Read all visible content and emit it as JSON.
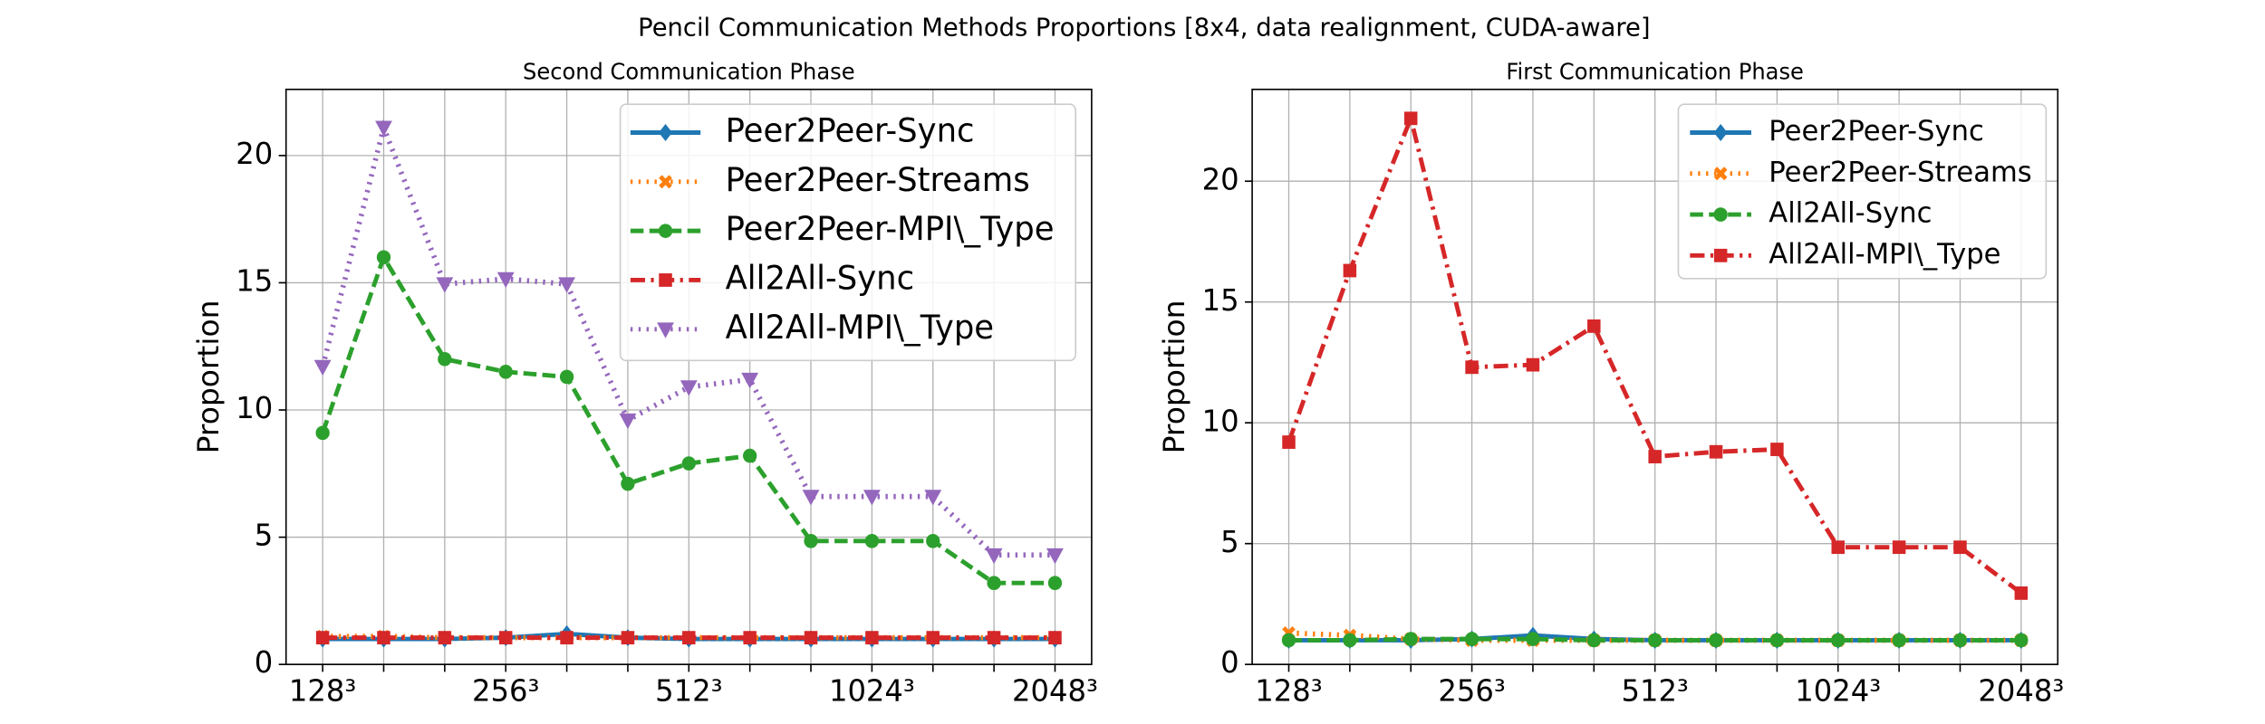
{
  "title": "Pencil Communication Methods Proportions [8x4, data realignment, CUDA-aware]",
  "chart_data": [
    {
      "type": "line",
      "title": "Second Communication Phase",
      "ylabel": "Proportion",
      "categories": [
        "128³",
        null,
        null,
        "256³",
        null,
        null,
        "512³",
        null,
        null,
        "1024³",
        null,
        null,
        "2048³"
      ],
      "ylim": [
        0,
        22.6
      ],
      "yticks": [
        0,
        5,
        10,
        15,
        20
      ],
      "grid": true,
      "legend": "upper right",
      "series": [
        {
          "name": "Peer2Peer-Sync",
          "color": "#1f77b4",
          "marker": "diamond",
          "dash": "solid",
          "values": [
            1.0,
            1.0,
            1.0,
            1.05,
            1.2,
            1.05,
            1.0,
            1.0,
            1.0,
            1.0,
            1.0,
            1.0,
            1.0
          ]
        },
        {
          "name": "Peer2Peer-Streams",
          "color": "#ff7f0e",
          "marker": "x",
          "dash": "dotted",
          "values": [
            1.1,
            1.1,
            1.05,
            1.05,
            1.05,
            1.05,
            1.05,
            1.05,
            1.05,
            1.05,
            1.05,
            1.05,
            1.05
          ]
        },
        {
          "name": "Peer2Peer-MPI\\_Type",
          "color": "#2ca02c",
          "marker": "circle",
          "dash": "dashed",
          "values": [
            9.1,
            16.0,
            12.0,
            11.5,
            11.3,
            7.1,
            7.9,
            8.2,
            4.85,
            4.85,
            4.85,
            3.2,
            3.2
          ]
        },
        {
          "name": "All2All-Sync",
          "color": "#d62728",
          "marker": "square",
          "dash": "dashdot",
          "values": [
            1.05,
            1.05,
            1.05,
            1.05,
            1.05,
            1.05,
            1.05,
            1.05,
            1.05,
            1.05,
            1.05,
            1.05,
            1.05
          ]
        },
        {
          "name": "All2All-MPI\\_Type",
          "color": "#9467bd",
          "marker": "triangle-down",
          "dash": "dotted",
          "values": [
            11.7,
            21.1,
            14.95,
            15.15,
            14.95,
            9.6,
            10.9,
            11.2,
            6.6,
            6.6,
            6.6,
            4.3,
            4.3
          ]
        }
      ]
    },
    {
      "type": "line",
      "title": "First Communication Phase",
      "ylabel": "Proportion",
      "categories": [
        "128³",
        null,
        null,
        "256³",
        null,
        null,
        "512³",
        null,
        null,
        "1024³",
        null,
        null,
        "2048³"
      ],
      "ylim": [
        0,
        23.8
      ],
      "yticks": [
        0,
        5,
        10,
        15,
        20
      ],
      "grid": true,
      "legend": "upper right",
      "series": [
        {
          "name": "Peer2Peer-Sync",
          "color": "#1f77b4",
          "marker": "diamond",
          "dash": "solid",
          "values": [
            1.0,
            1.0,
            1.0,
            1.05,
            1.2,
            1.05,
            1.0,
            1.0,
            1.0,
            1.0,
            1.0,
            1.0,
            1.0
          ]
        },
        {
          "name": "Peer2Peer-Streams",
          "color": "#ff7f0e",
          "marker": "x",
          "dash": "dotted",
          "values": [
            1.3,
            1.2,
            1.05,
            1.0,
            1.0,
            1.0,
            1.0,
            1.0,
            1.0,
            1.0,
            1.0,
            1.0,
            1.0
          ]
        },
        {
          "name": "All2All-Sync",
          "color": "#2ca02c",
          "marker": "circle",
          "dash": "dashed",
          "values": [
            1.0,
            1.0,
            1.05,
            1.05,
            1.05,
            1.0,
            1.0,
            1.0,
            1.0,
            1.0,
            1.0,
            1.0,
            1.0
          ]
        },
        {
          "name": "All2All-MPI\\_Type",
          "color": "#d62728",
          "marker": "square",
          "dash": "dashdot",
          "values": [
            9.2,
            16.3,
            22.6,
            12.3,
            12.4,
            14.0,
            8.6,
            8.8,
            8.9,
            4.85,
            4.85,
            4.85,
            2.95
          ]
        }
      ]
    }
  ]
}
